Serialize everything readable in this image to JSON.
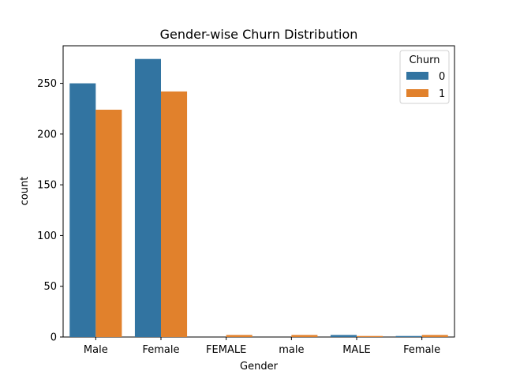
{
  "chart_data": {
    "type": "bar",
    "title": "Gender-wise Churn Distribution",
    "xlabel": "Gender",
    "ylabel": "count",
    "categories": [
      "Male",
      "Female",
      "FEMALE",
      "male",
      "MALE",
      "Female"
    ],
    "series": [
      {
        "name": "0",
        "values": [
          250,
          274,
          0,
          0,
          2,
          1
        ]
      },
      {
        "name": "1",
        "values": [
          224,
          242,
          2,
          2,
          1,
          2
        ]
      }
    ],
    "ylim": [
      0,
      287
    ],
    "yticks": [
      0,
      50,
      100,
      150,
      200,
      250
    ],
    "grid": false,
    "legend": {
      "title": "Churn",
      "placement": "top-right"
    },
    "colors": [
      "#3274a1",
      "#e1812c"
    ]
  }
}
